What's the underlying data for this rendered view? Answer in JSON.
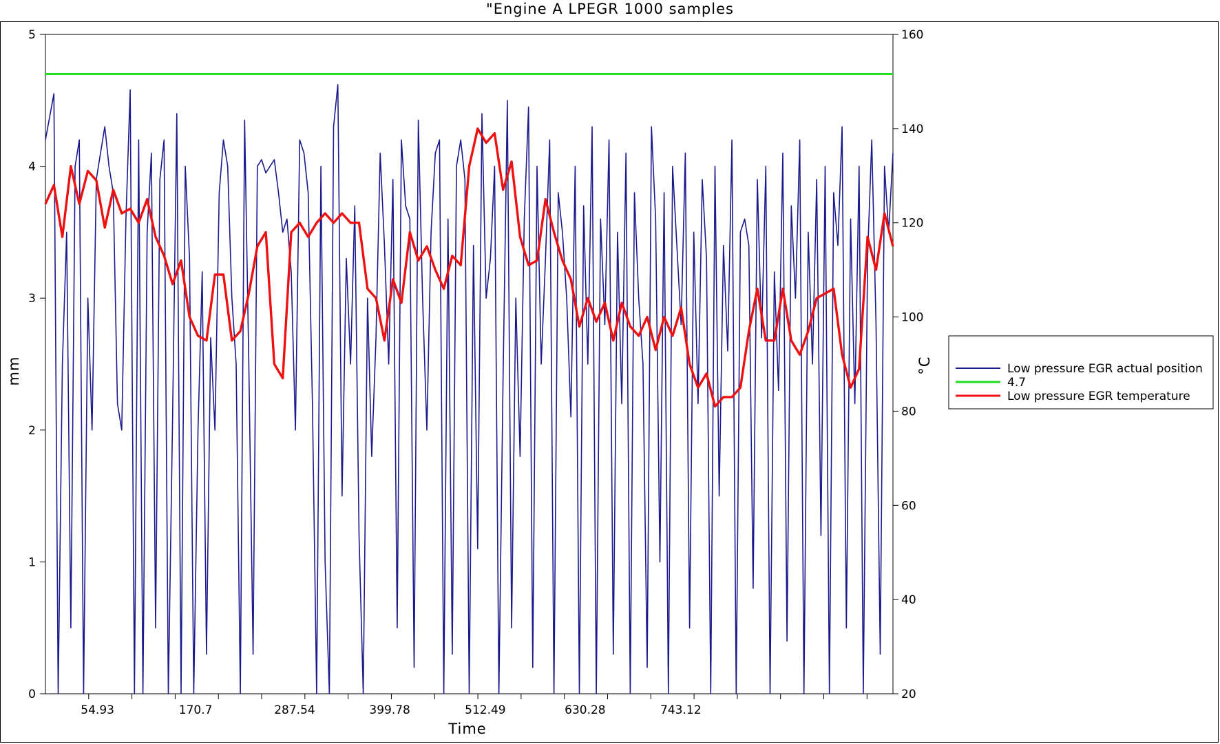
{
  "chart_data": {
    "type": "line",
    "title": "\"Engine A  LPEGR 1000 samples",
    "xlabel": "Time",
    "ylabel_left": "mm",
    "ylabel_right": "°C",
    "x_tick_labels": [
      "54.93",
      "170.7",
      "287.54",
      "399.78",
      "512.49",
      "630.28",
      "743.12"
    ],
    "x_tick_values": [
      54.93,
      170.7,
      287.54,
      399.78,
      512.49,
      630.28,
      743.12
    ],
    "xlim": [
      0,
      1000
    ],
    "ylim_left": [
      0,
      5
    ],
    "ylim_right": [
      20,
      160
    ],
    "yticks_left": [
      "0",
      "1",
      "2",
      "3",
      "4",
      "5"
    ],
    "yticks_right": [
      "20",
      "40",
      "60",
      "80",
      "100",
      "120",
      "140",
      "160"
    ],
    "grid": false,
    "legend_position": "right",
    "series": [
      {
        "name": "Low pressure EGR actual position",
        "axis": "left",
        "color": "#1a1a8c",
        "x": [
          0,
          10,
          15,
          20,
          25,
          30,
          35,
          40,
          45,
          50,
          55,
          60,
          65,
          70,
          75,
          80,
          85,
          90,
          95,
          100,
          105,
          110,
          115,
          120,
          125,
          130,
          135,
          140,
          145,
          150,
          155,
          160,
          165,
          170,
          175,
          180,
          185,
          190,
          195,
          200,
          205,
          210,
          215,
          220,
          225,
          230,
          235,
          240,
          245,
          250,
          255,
          260,
          265,
          270,
          275,
          280,
          285,
          290,
          295,
          300,
          305,
          310,
          315,
          320,
          325,
          330,
          335,
          340,
          345,
          350,
          355,
          360,
          365,
          370,
          375,
          380,
          385,
          390,
          395,
          400,
          405,
          410,
          415,
          420,
          425,
          430,
          435,
          440,
          445,
          450,
          455,
          460,
          465,
          470,
          475,
          480,
          485,
          490,
          495,
          500,
          505,
          510,
          515,
          520,
          525,
          530,
          535,
          540,
          545,
          550,
          555,
          560,
          565,
          570,
          575,
          580,
          585,
          590,
          595,
          600,
          605,
          610,
          615,
          620,
          625,
          630,
          635,
          640,
          645,
          650,
          655,
          660,
          665,
          670,
          675,
          680,
          685,
          690,
          695,
          700,
          705,
          710,
          715,
          720,
          725,
          730,
          735,
          740,
          745,
          750,
          755,
          760,
          765,
          770,
          775,
          780,
          785,
          790,
          795,
          800,
          805,
          810,
          815,
          820,
          825,
          830,
          835,
          840,
          845,
          850,
          855,
          860,
          865,
          870,
          875,
          880,
          885,
          890,
          895,
          900,
          905,
          910,
          915,
          920,
          925,
          930,
          935,
          940,
          945,
          950,
          955,
          960,
          965,
          970,
          975,
          980,
          985,
          990,
          995,
          1000
        ],
        "values": [
          4.2,
          4.55,
          0.0,
          2.5,
          3.5,
          0.5,
          4.0,
          4.2,
          0.0,
          3.0,
          2.0,
          3.9,
          4.1,
          4.3,
          4.0,
          3.8,
          2.2,
          2.0,
          3.6,
          4.58,
          0.0,
          4.2,
          0.0,
          3.5,
          4.1,
          0.5,
          3.9,
          4.2,
          0.0,
          2.1,
          4.4,
          0.0,
          4.0,
          3.3,
          0.0,
          2.0,
          3.2,
          0.3,
          2.7,
          2.0,
          3.8,
          4.2,
          4.0,
          3.0,
          2.5,
          0.0,
          4.35,
          2.5,
          0.3,
          4.0,
          4.05,
          3.95,
          4.0,
          4.05,
          3.8,
          3.5,
          3.6,
          3.2,
          2.0,
          4.2,
          4.1,
          3.8,
          2.2,
          0.0,
          4.0,
          1.0,
          0.0,
          4.3,
          4.62,
          1.5,
          3.3,
          2.5,
          3.7,
          1.2,
          0.0,
          3.0,
          1.8,
          2.7,
          4.1,
          3.4,
          2.5,
          3.9,
          0.5,
          4.2,
          3.7,
          3.6,
          0.2,
          4.35,
          3.0,
          2.0,
          3.5,
          4.1,
          4.2,
          0.0,
          3.6,
          0.3,
          4.0,
          4.2,
          3.9,
          0.0,
          3.4,
          1.1,
          4.4,
          3.0,
          3.3,
          4.0,
          0.0,
          2.4,
          4.5,
          0.5,
          3.0,
          1.8,
          3.6,
          4.45,
          0.2,
          4.0,
          2.5,
          3.3,
          4.2,
          0.0,
          3.8,
          3.5,
          3.0,
          2.1,
          4.0,
          0.0,
          3.7,
          2.5,
          4.3,
          0.0,
          3.6,
          2.8,
          4.2,
          0.3,
          3.5,
          2.2,
          4.1,
          0.0,
          3.8,
          3.0,
          2.5,
          0.2,
          4.3,
          3.6,
          1.0,
          3.8,
          0.0,
          4.0,
          3.4,
          2.8,
          4.1,
          0.5,
          3.5,
          2.2,
          3.9,
          3.3,
          0.0,
          4.0,
          1.5,
          3.4,
          2.6,
          4.2,
          0.0,
          3.5,
          3.6,
          3.4,
          0.8,
          3.9,
          2.7,
          4.0,
          0.0,
          3.2,
          2.3,
          4.1,
          0.4,
          3.7,
          3.0,
          4.2,
          0.0,
          3.5,
          2.5,
          3.9,
          1.2,
          4.0,
          0.0,
          3.8,
          3.4,
          4.3,
          0.5,
          3.6,
          2.2,
          4.0,
          0.0,
          3.3,
          4.2,
          2.8,
          0.3,
          4.0,
          3.5,
          4.1
        ]
      },
      {
        "name": "4.7",
        "axis": "left",
        "color": "#22dd22",
        "x": [
          0,
          1000
        ],
        "values": [
          4.7,
          4.7
        ]
      },
      {
        "name": "Low pressure EGR temperature",
        "axis": "right",
        "color": "#ee1111",
        "x": [
          0,
          10,
          20,
          30,
          40,
          50,
          60,
          70,
          80,
          90,
          100,
          110,
          120,
          130,
          140,
          150,
          160,
          170,
          180,
          190,
          200,
          210,
          220,
          230,
          240,
          250,
          260,
          270,
          280,
          290,
          300,
          310,
          320,
          330,
          340,
          350,
          360,
          370,
          380,
          390,
          400,
          410,
          420,
          430,
          440,
          450,
          460,
          470,
          480,
          490,
          500,
          510,
          520,
          530,
          540,
          550,
          560,
          570,
          580,
          590,
          600,
          610,
          620,
          630,
          640,
          650,
          660,
          670,
          680,
          690,
          700,
          710,
          720,
          730,
          740,
          750,
          760,
          770,
          780,
          790,
          800,
          810,
          820,
          830,
          840,
          850,
          860,
          870,
          880,
          890,
          900,
          910,
          920,
          930,
          940,
          950,
          960,
          970,
          980,
          990,
          1000
        ],
        "values": [
          124,
          128,
          117,
          132,
          124,
          131,
          129,
          119,
          127,
          122,
          123,
          120,
          125,
          117,
          113,
          107,
          112,
          100,
          96,
          95,
          109,
          109,
          95,
          97,
          105,
          115,
          118,
          90,
          87,
          118,
          120,
          117,
          120,
          122,
          120,
          122,
          120,
          120,
          106,
          104,
          95,
          108,
          103,
          118,
          112,
          115,
          110,
          106,
          113,
          111,
          132,
          140,
          137,
          139,
          127,
          133,
          117,
          111,
          112,
          125,
          118,
          112,
          108,
          98,
          104,
          99,
          103,
          95,
          103,
          98,
          96,
          100,
          93,
          100,
          96,
          102,
          90,
          85,
          88,
          81,
          83,
          83,
          85,
          97,
          106,
          95,
          95,
          106,
          95,
          92,
          97,
          104,
          105,
          106,
          92,
          85,
          89,
          117,
          110,
          122,
          115
        ]
      }
    ]
  }
}
